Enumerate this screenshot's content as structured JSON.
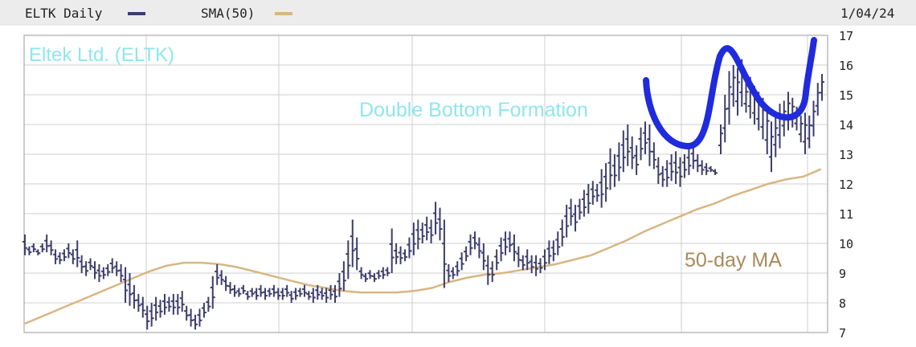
{
  "legend": {
    "price_label": "ELTK Daily",
    "sma_label": "SMA(50)",
    "date": "1/04/24"
  },
  "colors": {
    "price": "#3d3d6b",
    "sma": "#d8b683",
    "highlight": "#1f2bdc",
    "company_text": "#8fe6ee",
    "formation_text": "#8fe6ee",
    "ma_text": "#a88a5c",
    "grid": "#cfcfcf",
    "frame": "#9a9a9a"
  },
  "annotations": {
    "company": "Eltek Ltd. (ELTK)",
    "formation": "Double Bottom Formation",
    "ma": "50-day MA"
  },
  "chart_data": {
    "type": "ohlc",
    "title": "",
    "xlabel": "",
    "ylabel": "",
    "ylim": [
      7,
      17
    ],
    "yticks": [
      7,
      8,
      9,
      10,
      11,
      12,
      13,
      14,
      15,
      16,
      17
    ],
    "grid": true,
    "legend": "top-left",
    "series": [
      {
        "name": "ELTK Daily",
        "kind": "ohlc",
        "bars": [
          [
            10.3,
            9.6
          ],
          [
            9.9,
            9.6
          ],
          [
            10.0,
            9.7
          ],
          [
            9.8,
            9.6
          ],
          [
            10.0,
            9.7
          ],
          [
            10.3,
            9.7
          ],
          [
            10.1,
            9.6
          ],
          [
            9.8,
            9.3
          ],
          [
            9.7,
            9.3
          ],
          [
            9.8,
            9.4
          ],
          [
            10.0,
            9.5
          ],
          [
            9.8,
            9.3
          ],
          [
            10.1,
            9.2
          ],
          [
            9.6,
            9.0
          ],
          [
            9.4,
            8.9
          ],
          [
            9.5,
            9.1
          ],
          [
            9.4,
            8.8
          ],
          [
            9.3,
            8.7
          ],
          [
            9.2,
            8.8
          ],
          [
            9.3,
            8.9
          ],
          [
            9.5,
            9.0
          ],
          [
            9.4,
            8.9
          ],
          [
            9.3,
            8.7
          ],
          [
            9.2,
            8.0
          ],
          [
            9.0,
            7.9
          ],
          [
            8.6,
            7.8
          ],
          [
            8.3,
            7.7
          ],
          [
            8.2,
            7.5
          ],
          [
            7.9,
            7.1
          ],
          [
            8.0,
            7.2
          ],
          [
            8.2,
            7.4
          ],
          [
            8.1,
            7.5
          ],
          [
            8.3,
            7.6
          ],
          [
            8.2,
            7.7
          ],
          [
            8.3,
            7.6
          ],
          [
            8.3,
            7.6
          ],
          [
            8.4,
            7.7
          ],
          [
            7.9,
            7.4
          ],
          [
            7.8,
            7.2
          ],
          [
            7.6,
            7.1
          ],
          [
            7.8,
            7.2
          ],
          [
            8.0,
            7.5
          ],
          [
            8.2,
            7.7
          ],
          [
            8.9,
            7.8
          ],
          [
            9.3,
            8.6
          ],
          [
            9.1,
            8.6
          ],
          [
            8.9,
            8.4
          ],
          [
            8.7,
            8.3
          ],
          [
            8.6,
            8.2
          ],
          [
            8.5,
            8.2
          ],
          [
            8.6,
            8.3
          ],
          [
            8.4,
            8.1
          ],
          [
            8.5,
            8.2
          ],
          [
            8.5,
            8.1
          ],
          [
            8.6,
            8.2
          ],
          [
            8.5,
            8.1
          ],
          [
            8.5,
            8.2
          ],
          [
            8.6,
            8.2
          ],
          [
            8.5,
            8.1
          ],
          [
            8.5,
            8.1
          ],
          [
            8.6,
            8.2
          ],
          [
            8.4,
            8.0
          ],
          [
            8.5,
            8.1
          ],
          [
            8.5,
            8.2
          ],
          [
            8.6,
            8.2
          ],
          [
            8.4,
            8.1
          ],
          [
            8.5,
            8.0
          ],
          [
            8.6,
            8.1
          ],
          [
            8.5,
            8.1
          ],
          [
            8.5,
            8.0
          ],
          [
            8.6,
            8.1
          ],
          [
            8.6,
            8.0
          ],
          [
            9.0,
            8.2
          ],
          [
            9.4,
            8.4
          ],
          [
            10.1,
            8.8
          ],
          [
            10.8,
            9.2
          ],
          [
            10.2,
            9.1
          ],
          [
            9.2,
            8.8
          ],
          [
            9.0,
            8.7
          ],
          [
            9.1,
            8.8
          ],
          [
            9.0,
            8.7
          ],
          [
            9.1,
            8.8
          ],
          [
            9.2,
            8.8
          ],
          [
            9.2,
            8.9
          ],
          [
            10.5,
            9.0
          ],
          [
            10.0,
            9.3
          ],
          [
            9.9,
            9.3
          ],
          [
            9.8,
            9.4
          ],
          [
            10.2,
            9.5
          ],
          [
            10.7,
            9.6
          ],
          [
            10.8,
            9.8
          ],
          [
            10.7,
            10.0
          ],
          [
            10.9,
            10.1
          ],
          [
            10.8,
            10.0
          ],
          [
            11.4,
            10.3
          ],
          [
            11.2,
            10.1
          ],
          [
            10.8,
            8.5
          ],
          [
            9.3,
            8.7
          ],
          [
            9.2,
            8.8
          ],
          [
            9.4,
            8.9
          ],
          [
            9.7,
            9.1
          ],
          [
            9.9,
            9.4
          ],
          [
            10.3,
            9.6
          ],
          [
            10.4,
            9.8
          ],
          [
            10.2,
            9.5
          ],
          [
            10.0,
            9.1
          ],
          [
            9.6,
            8.6
          ],
          [
            9.4,
            8.7
          ],
          [
            9.8,
            9.1
          ],
          [
            10.2,
            9.4
          ],
          [
            10.4,
            9.6
          ],
          [
            10.4,
            9.7
          ],
          [
            10.3,
            9.4
          ],
          [
            9.9,
            9.2
          ],
          [
            9.6,
            9.1
          ],
          [
            9.8,
            9.1
          ],
          [
            9.6,
            9.0
          ],
          [
            9.6,
            8.9
          ],
          [
            9.5,
            9.0
          ],
          [
            9.8,
            9.1
          ],
          [
            10.1,
            9.3
          ],
          [
            10.1,
            9.4
          ],
          [
            10.4,
            9.6
          ],
          [
            10.8,
            9.9
          ],
          [
            11.3,
            10.2
          ],
          [
            11.5,
            10.6
          ],
          [
            11.3,
            10.4
          ],
          [
            11.5,
            10.8
          ],
          [
            11.8,
            10.9
          ],
          [
            12.0,
            11.0
          ],
          [
            12.1,
            11.3
          ],
          [
            12.0,
            11.4
          ],
          [
            12.5,
            11.2
          ],
          [
            12.7,
            11.4
          ],
          [
            13.2,
            11.8
          ],
          [
            13.0,
            11.9
          ],
          [
            13.4,
            12.1
          ],
          [
            13.8,
            12.4
          ],
          [
            14.0,
            12.6
          ],
          [
            13.6,
            12.5
          ],
          [
            13.3,
            12.3
          ],
          [
            13.9,
            12.8
          ],
          [
            14.1,
            13.0
          ],
          [
            14.0,
            12.6
          ],
          [
            13.4,
            12.5
          ],
          [
            12.9,
            12.0
          ],
          [
            12.6,
            11.9
          ],
          [
            12.8,
            11.9
          ],
          [
            13.0,
            12.1
          ],
          [
            13.1,
            12.0
          ],
          [
            12.9,
            11.9
          ],
          [
            13.0,
            12.2
          ],
          [
            13.2,
            12.3
          ],
          [
            13.3,
            12.5
          ],
          [
            13.0,
            12.4
          ],
          [
            12.8,
            12.3
          ],
          [
            12.7,
            12.3
          ],
          [
            12.6,
            12.4
          ],
          [
            12.5,
            12.3
          ]
        ],
        "segment_b_start": 148,
        "bars_b": [
          [
            14.0,
            13.0
          ],
          [
            15.0,
            13.4
          ],
          [
            15.8,
            14.0
          ],
          [
            16.0,
            14.6
          ],
          [
            15.9,
            14.3
          ],
          [
            16.2,
            14.6
          ],
          [
            15.4,
            14.4
          ],
          [
            15.6,
            14.2
          ],
          [
            15.3,
            14.0
          ],
          [
            15.1,
            13.8
          ],
          [
            14.9,
            13.5
          ],
          [
            14.6,
            13.0
          ],
          [
            14.1,
            12.4
          ],
          [
            14.3,
            12.9
          ],
          [
            14.7,
            13.2
          ],
          [
            14.8,
            13.6
          ],
          [
            15.1,
            13.8
          ],
          [
            14.9,
            13.9
          ],
          [
            14.6,
            13.8
          ],
          [
            14.3,
            13.4
          ],
          [
            14.4,
            13.0
          ],
          [
            14.3,
            13.2
          ],
          [
            14.8,
            13.6
          ],
          [
            15.4,
            14.3
          ],
          [
            15.7,
            14.8
          ]
        ]
      },
      {
        "name": "SMA(50)",
        "kind": "line",
        "values": [
          7.3,
          7.55,
          7.8,
          8.05,
          8.3,
          8.55,
          8.8,
          9.05,
          9.25,
          9.35,
          9.35,
          9.3,
          9.2,
          9.05,
          8.9,
          8.75,
          8.6,
          8.5,
          8.4,
          8.35,
          8.35,
          8.35,
          8.4,
          8.5,
          8.7,
          8.85,
          8.95,
          9.0,
          9.1,
          9.2,
          9.3,
          9.45,
          9.6,
          9.85,
          10.1,
          10.4,
          10.65,
          10.9,
          11.15,
          11.35,
          11.6,
          11.8,
          12.0,
          12.15,
          12.25,
          12.5
        ]
      }
    ]
  }
}
